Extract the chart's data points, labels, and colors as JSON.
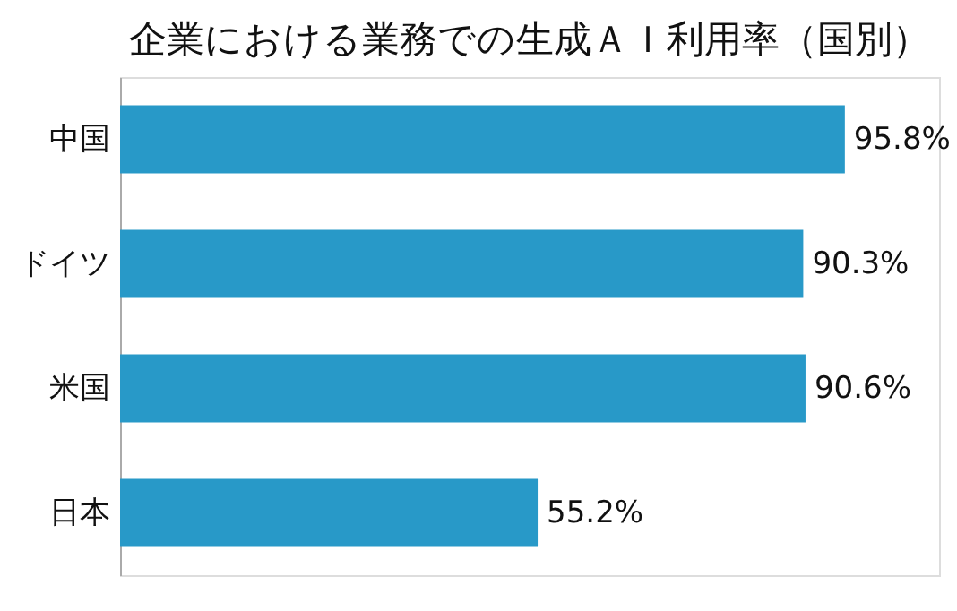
{
  "chart_data": {
    "type": "bar",
    "orientation": "horizontal",
    "title": "企業における業務での生成ＡＩ利用率（国別）",
    "categories": [
      "中国",
      "ドイツ",
      "米国",
      "日本"
    ],
    "values": [
      95.8,
      90.3,
      90.6,
      55.2
    ],
    "value_labels": [
      "95.8%",
      "90.3%",
      "90.6%",
      "55.2%"
    ],
    "color": "#2899c8"
  }
}
